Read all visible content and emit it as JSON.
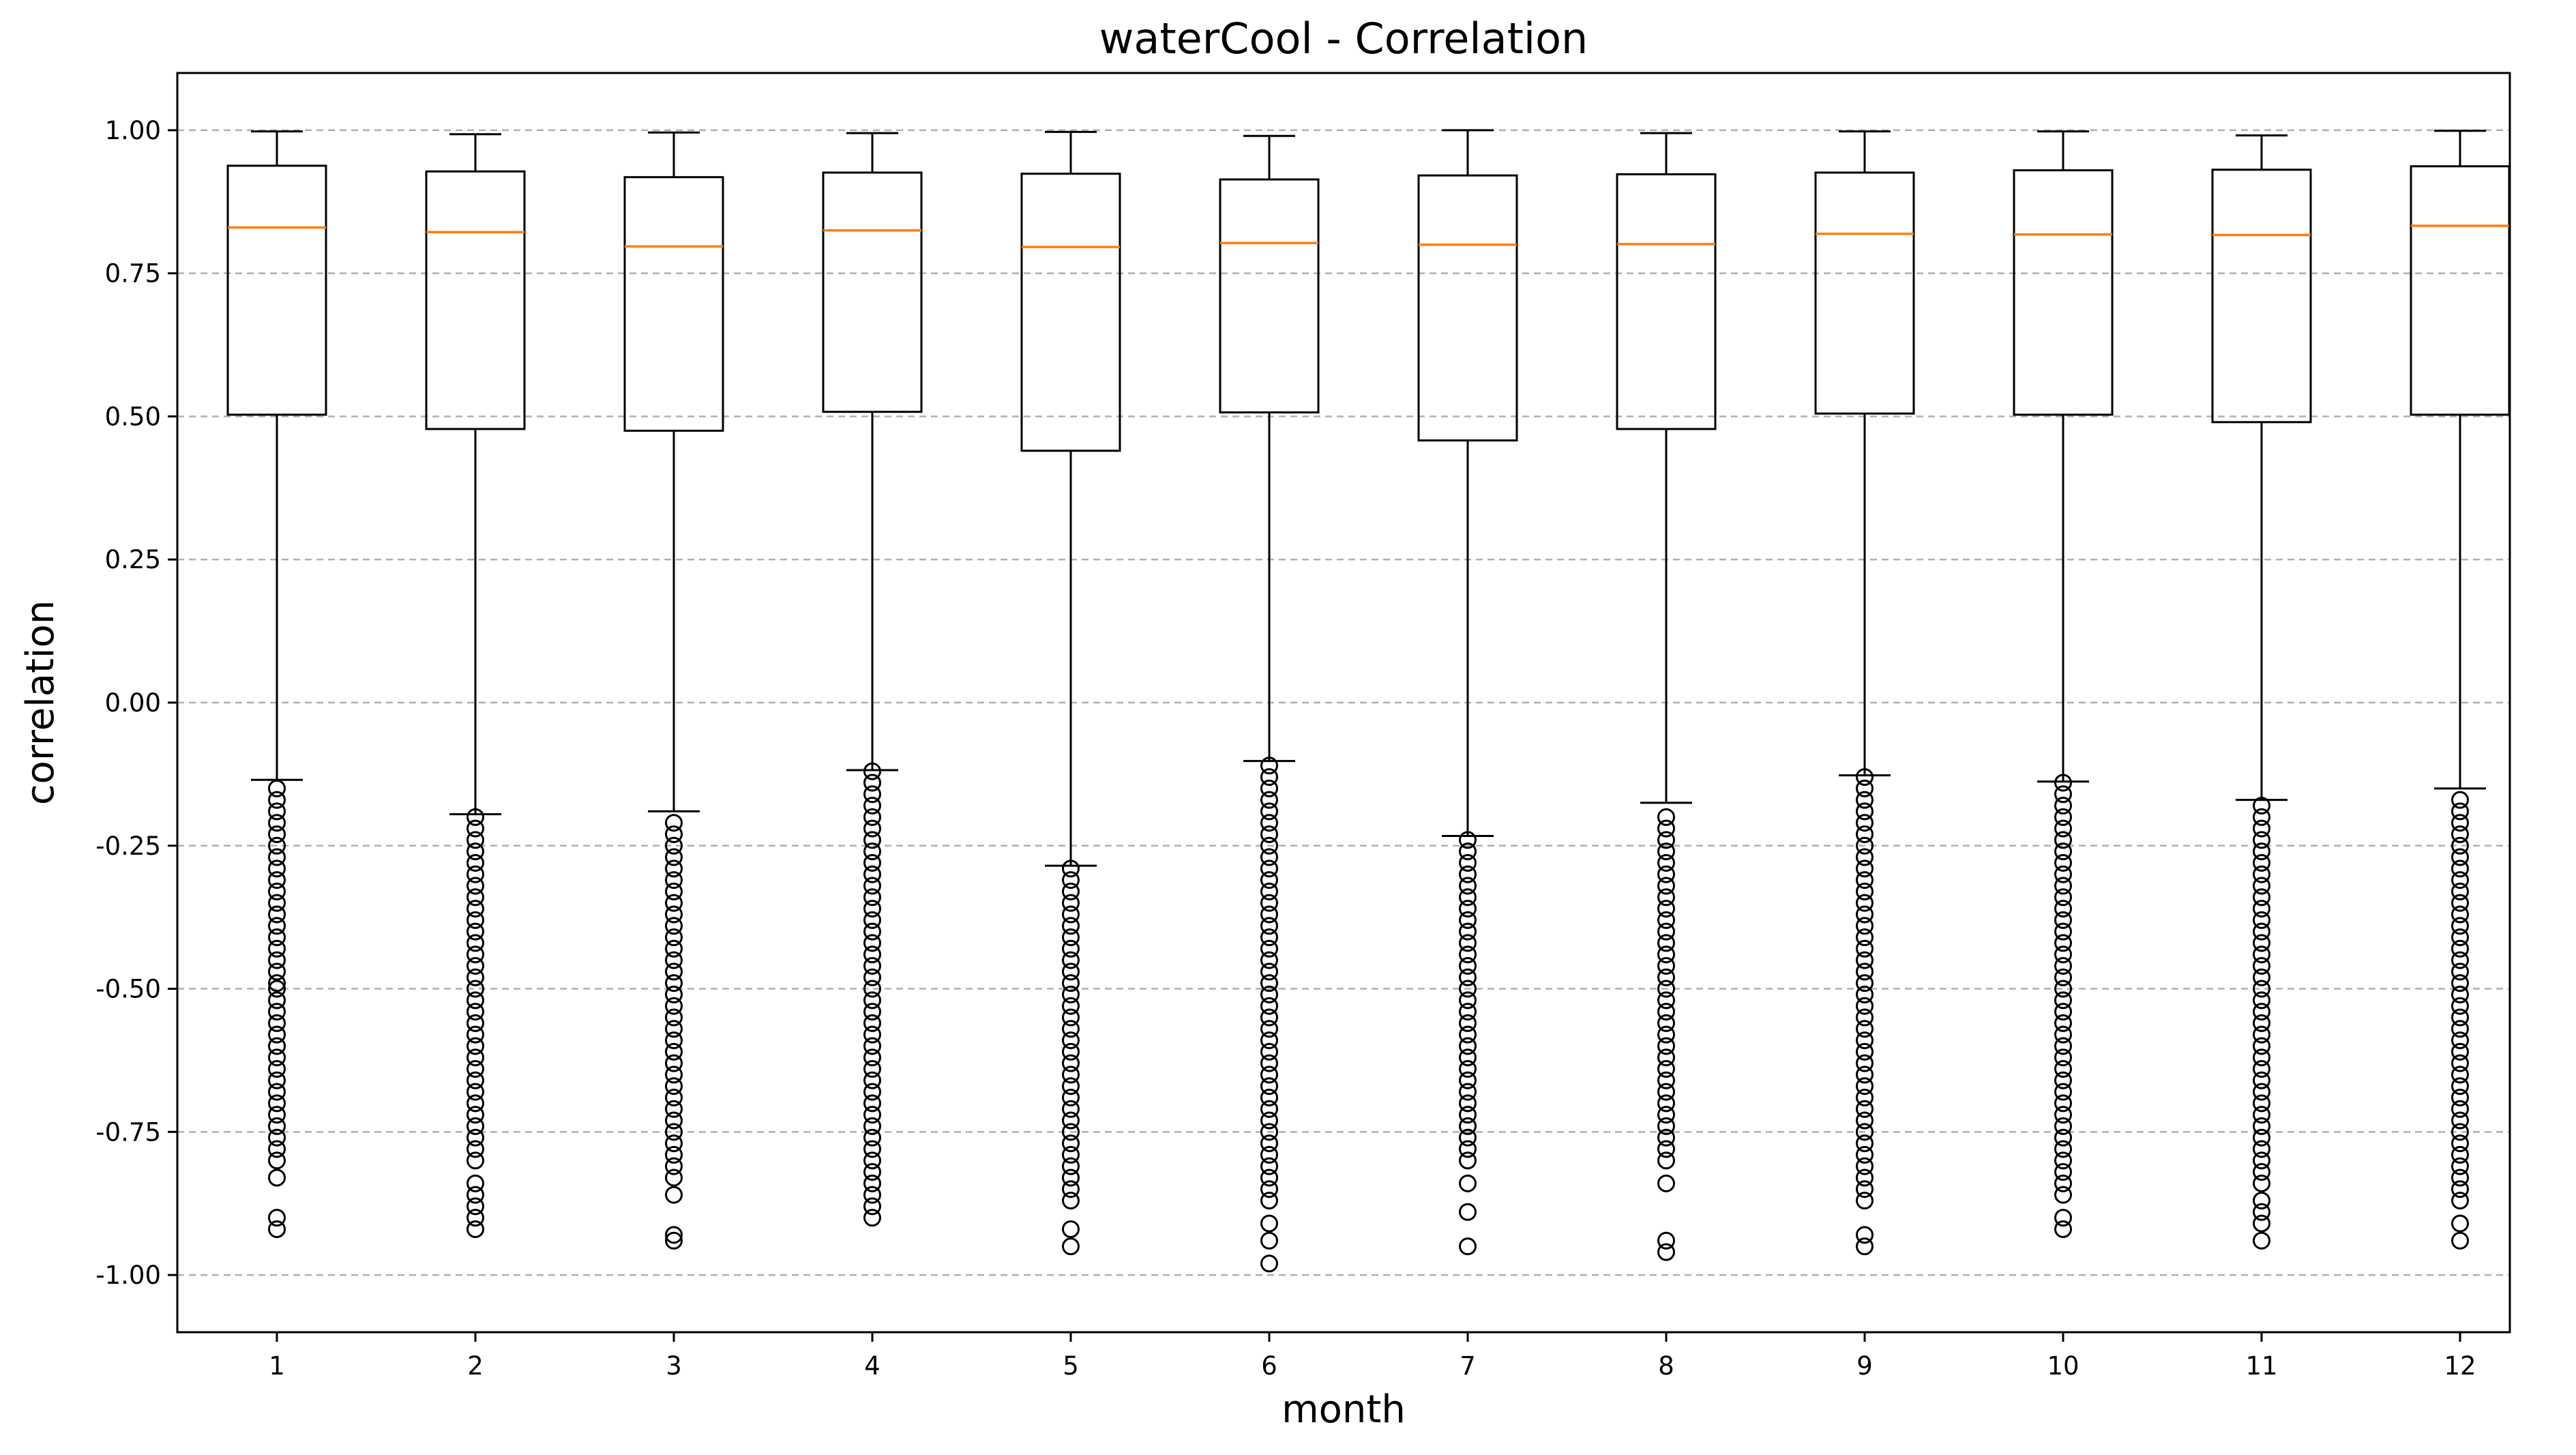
{
  "chart_data": {
    "type": "box",
    "title": "waterCool - Correlation",
    "xlabel": "month",
    "ylabel": "correlation",
    "ylim": [
      -1.1,
      1.1
    ],
    "yticks": [
      "1.00",
      "0.75",
      "0.50",
      "0.25",
      "0.00",
      "-0.25",
      "-0.50",
      "-0.75",
      "-1.00"
    ],
    "ytick_values": [
      1.0,
      0.75,
      0.5,
      0.25,
      0.0,
      -0.25,
      -0.5,
      -0.75,
      -1.0
    ],
    "grid": "y-dashed",
    "colors": {
      "box": "#000000",
      "median": "#ff7f0e",
      "grid": "#b0b0b0"
    },
    "categories": [
      "1",
      "2",
      "3",
      "4",
      "5",
      "6",
      "7",
      "8",
      "9",
      "10",
      "11",
      "12"
    ],
    "boxes": [
      {
        "whisker_low": -0.135,
        "q1": 0.503,
        "median": 0.83,
        "q3": 0.938,
        "whisker_high": 0.998,
        "outliers": [
          -0.15,
          -0.17,
          -0.19,
          -0.21,
          -0.23,
          -0.25,
          -0.27,
          -0.29,
          -0.31,
          -0.33,
          -0.35,
          -0.37,
          -0.39,
          -0.41,
          -0.43,
          -0.45,
          -0.47,
          -0.49,
          -0.5,
          -0.52,
          -0.54,
          -0.56,
          -0.58,
          -0.6,
          -0.62,
          -0.64,
          -0.66,
          -0.68,
          -0.7,
          -0.72,
          -0.74,
          -0.76,
          -0.78,
          -0.8,
          -0.83,
          -0.9,
          -0.92
        ]
      },
      {
        "whisker_low": -0.195,
        "q1": 0.478,
        "median": 0.822,
        "q3": 0.928,
        "whisker_high": 0.993,
        "outliers": [
          -0.2,
          -0.22,
          -0.24,
          -0.26,
          -0.28,
          -0.3,
          -0.32,
          -0.34,
          -0.36,
          -0.38,
          -0.4,
          -0.42,
          -0.44,
          -0.46,
          -0.48,
          -0.5,
          -0.52,
          -0.54,
          -0.56,
          -0.58,
          -0.6,
          -0.62,
          -0.64,
          -0.66,
          -0.68,
          -0.7,
          -0.72,
          -0.74,
          -0.76,
          -0.78,
          -0.8,
          -0.84,
          -0.86,
          -0.88,
          -0.9,
          -0.92
        ]
      },
      {
        "whisker_low": -0.19,
        "q1": 0.475,
        "median": 0.797,
        "q3": 0.918,
        "whisker_high": 0.996,
        "outliers": [
          -0.21,
          -0.23,
          -0.25,
          -0.27,
          -0.29,
          -0.31,
          -0.33,
          -0.35,
          -0.37,
          -0.39,
          -0.41,
          -0.43,
          -0.45,
          -0.47,
          -0.49,
          -0.51,
          -0.53,
          -0.55,
          -0.57,
          -0.59,
          -0.61,
          -0.63,
          -0.65,
          -0.67,
          -0.69,
          -0.71,
          -0.73,
          -0.75,
          -0.77,
          -0.79,
          -0.81,
          -0.83,
          -0.86,
          -0.93,
          -0.94
        ]
      },
      {
        "whisker_low": -0.118,
        "q1": 0.508,
        "median": 0.825,
        "q3": 0.926,
        "whisker_high": 0.995,
        "outliers": [
          -0.12,
          -0.14,
          -0.16,
          -0.18,
          -0.2,
          -0.22,
          -0.24,
          -0.26,
          -0.28,
          -0.3,
          -0.32,
          -0.34,
          -0.36,
          -0.38,
          -0.4,
          -0.42,
          -0.44,
          -0.46,
          -0.48,
          -0.5,
          -0.52,
          -0.54,
          -0.56,
          -0.58,
          -0.6,
          -0.62,
          -0.64,
          -0.66,
          -0.68,
          -0.7,
          -0.72,
          -0.74,
          -0.76,
          -0.78,
          -0.8,
          -0.82,
          -0.84,
          -0.86,
          -0.88,
          -0.9
        ]
      },
      {
        "whisker_low": -0.285,
        "q1": 0.44,
        "median": 0.796,
        "q3": 0.924,
        "whisker_high": 0.997,
        "outliers": [
          -0.29,
          -0.31,
          -0.33,
          -0.35,
          -0.37,
          -0.39,
          -0.41,
          -0.43,
          -0.45,
          -0.47,
          -0.49,
          -0.51,
          -0.53,
          -0.55,
          -0.57,
          -0.59,
          -0.61,
          -0.63,
          -0.65,
          -0.67,
          -0.69,
          -0.71,
          -0.73,
          -0.75,
          -0.77,
          -0.79,
          -0.81,
          -0.83,
          -0.85,
          -0.87,
          -0.92,
          -0.95
        ]
      },
      {
        "whisker_low": -0.102,
        "q1": 0.507,
        "median": 0.803,
        "q3": 0.914,
        "whisker_high": 0.99,
        "outliers": [
          -0.11,
          -0.13,
          -0.15,
          -0.17,
          -0.19,
          -0.21,
          -0.23,
          -0.25,
          -0.27,
          -0.29,
          -0.31,
          -0.33,
          -0.35,
          -0.37,
          -0.39,
          -0.41,
          -0.43,
          -0.45,
          -0.47,
          -0.49,
          -0.51,
          -0.53,
          -0.55,
          -0.57,
          -0.59,
          -0.61,
          -0.63,
          -0.65,
          -0.67,
          -0.69,
          -0.71,
          -0.73,
          -0.75,
          -0.77,
          -0.79,
          -0.81,
          -0.83,
          -0.85,
          -0.87,
          -0.91,
          -0.94,
          -0.98
        ]
      },
      {
        "whisker_low": -0.233,
        "q1": 0.458,
        "median": 0.8,
        "q3": 0.921,
        "whisker_high": 1.0,
        "outliers": [
          -0.24,
          -0.26,
          -0.28,
          -0.3,
          -0.32,
          -0.34,
          -0.36,
          -0.38,
          -0.4,
          -0.42,
          -0.44,
          -0.46,
          -0.48,
          -0.5,
          -0.52,
          -0.54,
          -0.56,
          -0.58,
          -0.6,
          -0.62,
          -0.64,
          -0.66,
          -0.68,
          -0.7,
          -0.72,
          -0.74,
          -0.76,
          -0.78,
          -0.8,
          -0.84,
          -0.89,
          -0.95
        ]
      },
      {
        "whisker_low": -0.175,
        "q1": 0.478,
        "median": 0.801,
        "q3": 0.923,
        "whisker_high": 0.995,
        "outliers": [
          -0.2,
          -0.22,
          -0.24,
          -0.26,
          -0.28,
          -0.3,
          -0.32,
          -0.34,
          -0.36,
          -0.38,
          -0.4,
          -0.42,
          -0.44,
          -0.46,
          -0.48,
          -0.5,
          -0.52,
          -0.54,
          -0.56,
          -0.58,
          -0.6,
          -0.62,
          -0.64,
          -0.66,
          -0.68,
          -0.7,
          -0.72,
          -0.74,
          -0.76,
          -0.78,
          -0.8,
          -0.84,
          -0.94,
          -0.96
        ]
      },
      {
        "whisker_low": -0.127,
        "q1": 0.505,
        "median": 0.819,
        "q3": 0.926,
        "whisker_high": 0.998,
        "outliers": [
          -0.13,
          -0.15,
          -0.17,
          -0.19,
          -0.21,
          -0.23,
          -0.25,
          -0.27,
          -0.29,
          -0.31,
          -0.33,
          -0.35,
          -0.37,
          -0.39,
          -0.41,
          -0.43,
          -0.45,
          -0.47,
          -0.49,
          -0.51,
          -0.53,
          -0.55,
          -0.57,
          -0.59,
          -0.61,
          -0.63,
          -0.65,
          -0.67,
          -0.69,
          -0.71,
          -0.73,
          -0.75,
          -0.77,
          -0.79,
          -0.81,
          -0.83,
          -0.85,
          -0.87,
          -0.93,
          -0.95
        ]
      },
      {
        "whisker_low": -0.138,
        "q1": 0.503,
        "median": 0.818,
        "q3": 0.93,
        "whisker_high": 0.998,
        "outliers": [
          -0.14,
          -0.16,
          -0.18,
          -0.2,
          -0.22,
          -0.24,
          -0.26,
          -0.28,
          -0.3,
          -0.32,
          -0.34,
          -0.36,
          -0.38,
          -0.4,
          -0.42,
          -0.44,
          -0.46,
          -0.48,
          -0.5,
          -0.52,
          -0.54,
          -0.56,
          -0.58,
          -0.6,
          -0.62,
          -0.64,
          -0.66,
          -0.68,
          -0.7,
          -0.72,
          -0.74,
          -0.76,
          -0.78,
          -0.8,
          -0.82,
          -0.84,
          -0.86,
          -0.9,
          -0.92
        ]
      },
      {
        "whisker_low": -0.17,
        "q1": 0.49,
        "median": 0.817,
        "q3": 0.931,
        "whisker_high": 0.991,
        "outliers": [
          -0.18,
          -0.2,
          -0.22,
          -0.24,
          -0.26,
          -0.28,
          -0.3,
          -0.32,
          -0.34,
          -0.36,
          -0.38,
          -0.4,
          -0.42,
          -0.44,
          -0.46,
          -0.48,
          -0.5,
          -0.52,
          -0.54,
          -0.56,
          -0.58,
          -0.6,
          -0.62,
          -0.64,
          -0.66,
          -0.68,
          -0.7,
          -0.72,
          -0.74,
          -0.76,
          -0.78,
          -0.8,
          -0.82,
          -0.84,
          -0.87,
          -0.89,
          -0.91,
          -0.94
        ]
      },
      {
        "whisker_low": -0.15,
        "q1": 0.503,
        "median": 0.833,
        "q3": 0.937,
        "whisker_high": 0.999,
        "outliers": [
          -0.17,
          -0.19,
          -0.21,
          -0.23,
          -0.25,
          -0.27,
          -0.29,
          -0.31,
          -0.33,
          -0.35,
          -0.37,
          -0.39,
          -0.41,
          -0.43,
          -0.45,
          -0.47,
          -0.49,
          -0.51,
          -0.53,
          -0.55,
          -0.57,
          -0.59,
          -0.61,
          -0.63,
          -0.65,
          -0.67,
          -0.69,
          -0.71,
          -0.73,
          -0.75,
          -0.77,
          -0.79,
          -0.81,
          -0.83,
          -0.85,
          -0.87,
          -0.91,
          -0.94
        ]
      }
    ]
  }
}
